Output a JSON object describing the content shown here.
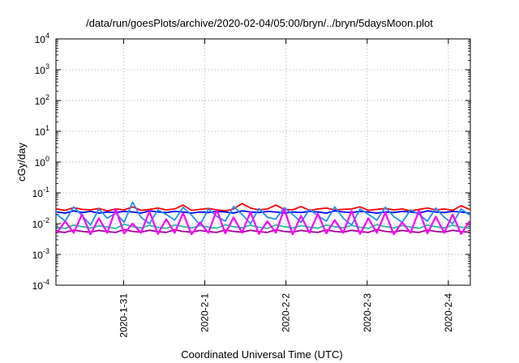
{
  "chart_data": {
    "type": "line",
    "title": "/data/run/goesPlots/archive/2020-02-04/05:00/bryn/../bryn/5daysMoon.plot",
    "xlabel": "Coordinated Universal Time (UTC)",
    "ylabel": "cGy/day",
    "yscale": "log",
    "ylim": [
      0.0001,
      10000
    ],
    "y_ticks": [
      {
        "base": "10",
        "exp": "-4",
        "value": 0.0001
      },
      {
        "base": "10",
        "exp": "-3",
        "value": 0.001
      },
      {
        "base": "10",
        "exp": "-2",
        "value": 0.01
      },
      {
        "base": "10",
        "exp": "-1",
        "value": 0.1
      },
      {
        "base": "10",
        "exp": "0",
        "value": 1
      },
      {
        "base": "10",
        "exp": "1",
        "value": 10
      },
      {
        "base": "10",
        "exp": "2",
        "value": 100
      },
      {
        "base": "10",
        "exp": "3",
        "value": 1000
      },
      {
        "base": "10",
        "exp": "4",
        "value": 10000
      }
    ],
    "xlim": [
      "2020-01-30T04:00",
      "2020-02-04T06:30"
    ],
    "x_ticks": [
      {
        "label": "2020-1-31",
        "value": "2020-01-31"
      },
      {
        "label": "2020-2-1",
        "value": "2020-02-01"
      },
      {
        "label": "2020-2-2",
        "value": "2020-02-02"
      },
      {
        "label": "2020-2-3",
        "value": "2020-02-03"
      },
      {
        "label": "2020-2-4",
        "value": "2020-02-04"
      }
    ],
    "grid": true,
    "legend": "none",
    "series": [
      {
        "color": "#ff0000",
        "baseline": 0.028,
        "values": [
          0.03,
          0.027,
          0.033,
          0.029,
          0.028,
          0.031,
          0.026,
          0.03,
          0.028,
          0.035,
          0.027,
          0.029,
          0.032,
          0.028,
          0.03,
          0.04,
          0.027,
          0.029,
          0.031,
          0.028,
          0.026,
          0.03,
          0.045,
          0.032,
          0.028,
          0.03,
          0.04,
          0.029,
          0.028,
          0.036,
          0.027,
          0.03,
          0.032,
          0.028,
          0.029,
          0.03,
          0.035,
          0.027,
          0.029,
          0.031,
          0.028,
          0.03,
          0.026,
          0.029,
          0.032,
          0.028,
          0.03,
          0.027,
          0.038,
          0.029
        ]
      },
      {
        "color": "#0000ff",
        "baseline": 0.024,
        "values": [
          0.024,
          0.022,
          0.026,
          0.023,
          0.025,
          0.022,
          0.024,
          0.023,
          0.025,
          0.024,
          0.022,
          0.026,
          0.024,
          0.023,
          0.025,
          0.024,
          0.022,
          0.024,
          0.023,
          0.025,
          0.024,
          0.022,
          0.026,
          0.024,
          0.023,
          0.025,
          0.024,
          0.022,
          0.024,
          0.023,
          0.025,
          0.024,
          0.022,
          0.026,
          0.024,
          0.023,
          0.025,
          0.024,
          0.022,
          0.024,
          0.023,
          0.025,
          0.024,
          0.022,
          0.026,
          0.024,
          0.023,
          0.025,
          0.024,
          0.022
        ]
      },
      {
        "color": "#1e90ff",
        "baseline": 0.02,
        "values": [
          0.02,
          0.012,
          0.035,
          0.018,
          0.009,
          0.03,
          0.015,
          0.022,
          0.011,
          0.05,
          0.016,
          0.01,
          0.028,
          0.02,
          0.013,
          0.034,
          0.019,
          0.009,
          0.03,
          0.017,
          0.012,
          0.036,
          0.02,
          0.01,
          0.031,
          0.016,
          0.014,
          0.033,
          0.02,
          0.011,
          0.029,
          0.018,
          0.012,
          0.035,
          0.015,
          0.009,
          0.03,
          0.02,
          0.013,
          0.034,
          0.017,
          0.011,
          0.028,
          0.02,
          0.012,
          0.032,
          0.016,
          0.01,
          0.03,
          0.019
        ]
      },
      {
        "color": "#20c0a0",
        "baseline": 0.0075,
        "values": [
          0.0075,
          0.007,
          0.009,
          0.008,
          0.0072,
          0.0085,
          0.0078,
          0.007,
          0.0095,
          0.008,
          0.0073,
          0.0088,
          0.0076,
          0.007,
          0.009,
          0.0081,
          0.0072,
          0.0087,
          0.0077,
          0.0071,
          0.0092,
          0.0079,
          0.0073,
          0.0089,
          0.0076,
          0.007,
          0.0091,
          0.008,
          0.0072,
          0.0086,
          0.0077,
          0.0071,
          0.009,
          0.0079,
          0.0073,
          0.0088,
          0.0076,
          0.007,
          0.0093,
          0.008,
          0.0072,
          0.0087,
          0.0077,
          0.0071,
          0.009,
          0.0079,
          0.0073,
          0.0089,
          0.0076,
          0.0072
        ]
      },
      {
        "color": "#a000a0",
        "baseline": 0.0055,
        "values": [
          0.0055,
          0.0052,
          0.0062,
          0.0056,
          0.0053,
          0.006,
          0.0055,
          0.0052,
          0.0064,
          0.0056,
          0.0053,
          0.0061,
          0.0055,
          0.0052,
          0.0063,
          0.0056,
          0.0053,
          0.006,
          0.0055,
          0.0052,
          0.0062,
          0.0056,
          0.0053,
          0.0061,
          0.0055,
          0.0052,
          0.0063,
          0.0056,
          0.0053,
          0.006,
          0.0055,
          0.0052,
          0.0062,
          0.0056,
          0.0053,
          0.0061,
          0.0055,
          0.0052,
          0.0064,
          0.0056,
          0.0053,
          0.006,
          0.0055,
          0.0052,
          0.0062,
          0.0056,
          0.0053,
          0.0061,
          0.0055,
          0.0053
        ]
      },
      {
        "color": "#ff00ff",
        "baseline": 0.005,
        "values": [
          0.005,
          0.012,
          0.005,
          0.02,
          0.0045,
          0.015,
          0.005,
          0.03,
          0.0048,
          0.01,
          0.005,
          0.025,
          0.0046,
          0.014,
          0.005,
          0.022,
          0.0045,
          0.011,
          0.005,
          0.028,
          0.0048,
          0.016,
          0.005,
          0.024,
          0.0046,
          0.012,
          0.005,
          0.03,
          0.0045,
          0.018,
          0.005,
          0.021,
          0.0048,
          0.013,
          0.005,
          0.026,
          0.0046,
          0.015,
          0.005,
          0.023,
          0.0045,
          0.011,
          0.005,
          0.027,
          0.0048,
          0.017,
          0.005,
          0.02,
          0.0046,
          0.012
        ]
      }
    ]
  }
}
